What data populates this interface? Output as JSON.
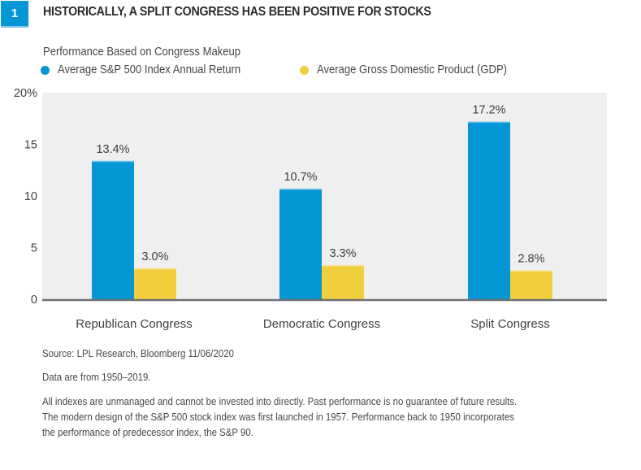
{
  "header": {
    "figure_number": "1",
    "title": "HISTORICALLY, A SPLIT CONGRESS HAS BEEN POSITIVE FOR STOCKS"
  },
  "colors": {
    "badge": "#0596d6",
    "sp500": "#0596d6",
    "gdp": "#f1ce3d",
    "plot_bg": "#efefef",
    "axis": "#6e7073",
    "text": "#3d4043"
  },
  "chart_data": {
    "type": "bar",
    "title": "Performance Based on Congress Makeup",
    "xlabel": "",
    "ylabel": "",
    "categories": [
      "Republican Congress",
      "Democratic Congress",
      "Split Congress"
    ],
    "series": [
      {
        "name": "Average S&P 500 Index Annual Return",
        "color": "#0596d6",
        "values": [
          13.4,
          10.7,
          17.2
        ],
        "labels": [
          "13.4%",
          "10.7%",
          "17.2%"
        ]
      },
      {
        "name": "Average Gross Domestic Product (GDP)",
        "color": "#f1ce3d",
        "values": [
          3.0,
          3.3,
          2.8
        ],
        "labels": [
          "3.0%",
          "3.3%",
          "2.8%"
        ]
      }
    ],
    "ylim": [
      0,
      20
    ],
    "yticks": [
      0,
      5,
      10,
      15,
      20
    ],
    "ytick_labels": [
      "0",
      "5",
      "10",
      "15",
      "20%"
    ],
    "grid": false,
    "legend_position": "top-left"
  },
  "footnotes": {
    "source": "Source: LPL Research, Bloomberg   11/06/2020",
    "data_range": "Data are from 1950–2019.",
    "disclaimer_lines": [
      "All indexes are unmanaged and cannot be invested into directly. Past performance is no guarantee of future results.",
      "The modern design of the S&P 500 stock index was first launched in 1957. Performance back to 1950 incorporates",
      "the performance of predecessor index, the S&P 90."
    ]
  }
}
